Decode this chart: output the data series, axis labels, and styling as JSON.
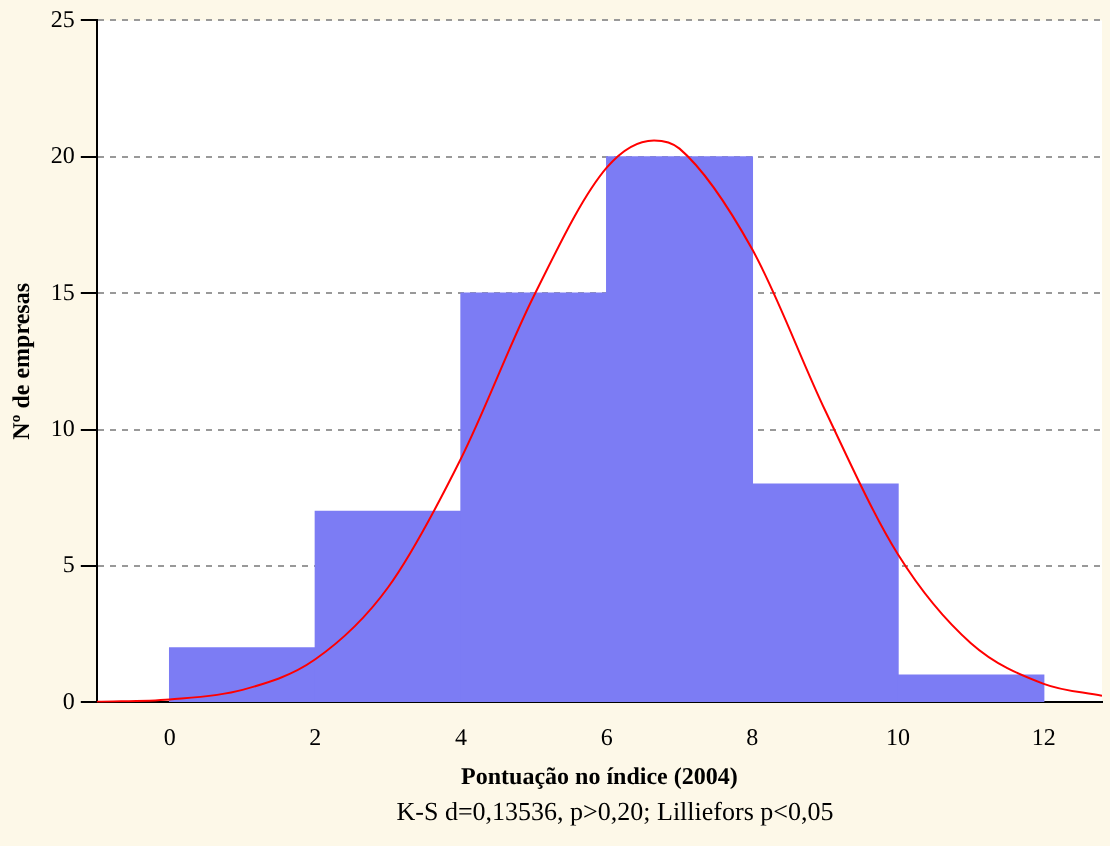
{
  "chart_data": {
    "type": "histogram",
    "xlabel": "Pontuação no índice (2004)",
    "ylabel": "Nº de empresas",
    "bins": [
      0,
      2,
      4,
      6,
      8,
      10,
      12
    ],
    "values": [
      2,
      7,
      15,
      20,
      8,
      1
    ],
    "color": "#7c7cf4",
    "series": [
      {
        "type": "line",
        "color": "#ff0000",
        "x": [
          -1,
          0,
          1,
          2,
          3,
          4,
          5,
          6,
          6.65,
          7,
          8,
          9,
          10,
          11,
          12,
          12.8
        ],
        "values": [
          0.02,
          0.11,
          0.46,
          1.58,
          4.22,
          8.94,
          14.9,
          19.6,
          20.6,
          20.3,
          16.6,
          10.7,
          5.42,
          2.17,
          0.68,
          0.24
        ]
      }
    ],
    "xlim": [
      -1,
      12.8
    ],
    "xticks": [
      0,
      2,
      4,
      6,
      8,
      10,
      12
    ],
    "ylim": [
      0,
      25
    ],
    "yticks": [
      0,
      5,
      10,
      15,
      20,
      25
    ],
    "grid": "y",
    "annotations": [
      "K-S d=0,13536, p>0,20; Lilliefors p<0,05"
    ]
  }
}
